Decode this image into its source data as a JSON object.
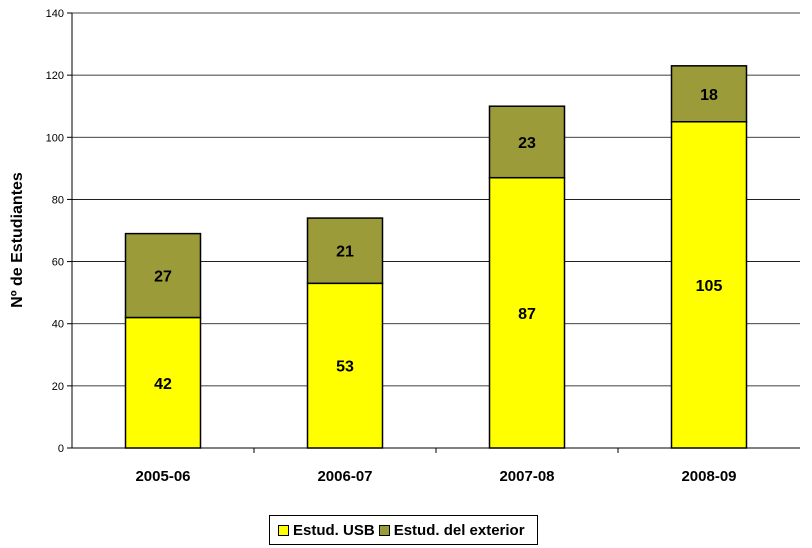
{
  "chart_data": {
    "type": "bar",
    "stacked": true,
    "categories": [
      "2005-06",
      "2006-07",
      "2007-08",
      "2008-09"
    ],
    "series": [
      {
        "name": "Estud. USB",
        "values": [
          42,
          53,
          87,
          105
        ],
        "color": "#ffff00"
      },
      {
        "name": "Estud. del exterior",
        "values": [
          27,
          21,
          23,
          18
        ],
        "color": "#9b9b3a"
      }
    ],
    "title": "",
    "xlabel": "",
    "ylabel": "Nº de Estudiantes",
    "ylim": [
      0,
      140
    ],
    "yticks": [
      0,
      20,
      40,
      60,
      80,
      100,
      120,
      140
    ],
    "grid": true,
    "legend_position": "bottom"
  }
}
